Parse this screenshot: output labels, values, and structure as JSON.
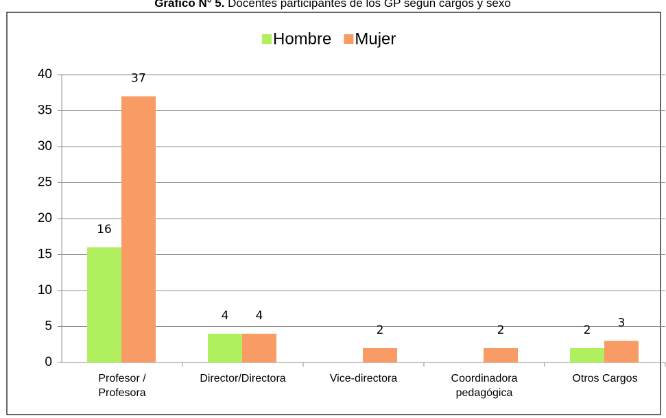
{
  "chart_data": {
    "type": "bar",
    "title_label": "Gráfico N° 5.",
    "title": "Docentes participantes de los GP según cargos y sexo",
    "categories": [
      [
        "Profesor /",
        "Profesora"
      ],
      [
        "Director/Directora"
      ],
      [
        "Vice-directora"
      ],
      [
        "Coordinadora",
        "pedagógica"
      ],
      [
        "Otros Cargos"
      ]
    ],
    "series": [
      {
        "name": "Hombre",
        "color": "#b0f05e",
        "values": [
          16,
          4,
          null,
          null,
          2
        ]
      },
      {
        "name": "Mujer",
        "color": "#f99b64",
        "values": [
          37,
          4,
          2,
          2,
          3
        ]
      }
    ],
    "ylim": [
      0,
      40
    ],
    "yticks": [
      0,
      5,
      10,
      15,
      20,
      25,
      30,
      35,
      40
    ],
    "grid": true,
    "legend": "top"
  }
}
